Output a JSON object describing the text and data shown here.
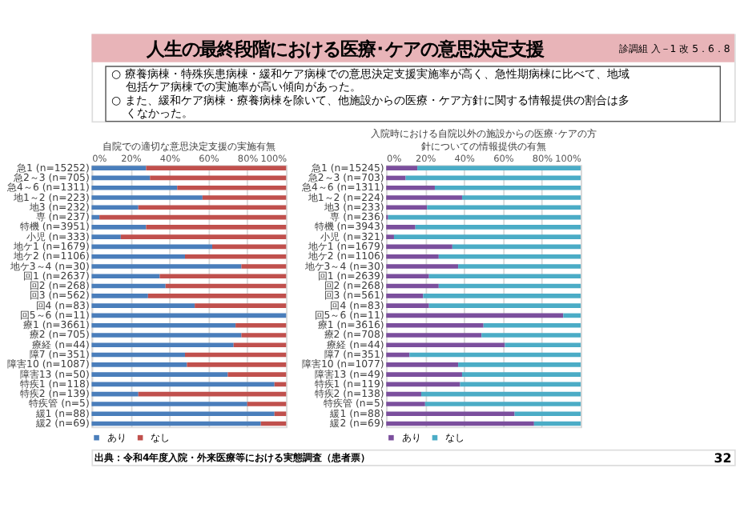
{
  "chart_data": [
    {
      "type": "other",
      "title": "人生の最終段階における医療･ケアの意思決定支援",
      "annotations": [
        "診調組 入－1 改 5．6．8",
        "○ 療養病棟・特殊疾患病棟・緩和ケア病棟での意思決定支援実施率が高く、急性期病棟に比べて、地域包括ケア病棟での実施率が高い傾向があった。",
        "○ また、緩和ケア病棟・療養病棟を除いて、他施設からの医療・ケア方針に関する情報提供の割合は多くなかった。",
        "出典：令和4年度入院・外来医療等における実態調査（患者票）",
        "32"
      ]
    },
    {
      "type": "bar",
      "orientation": "horizontal",
      "stacked": true,
      "title": "自院での適切な意思決定支援の実施有無",
      "categories": [
        "急1 (n=15252)",
        "急2～3 (n=705)",
        "急4～6 (n=1311)",
        "地1～2 (n=223)",
        "地3 (n=232)",
        "専 (n=237)",
        "特機 (n=3951)",
        "小児 (n=333)",
        "地ケ1 (n=1679)",
        "地ケ2 (n=1106)",
        "地ケ3～4 (n=30)",
        "回1 (n=2637)",
        "回2 (n=268)",
        "回3 (n=562)",
        "回4 (n=83)",
        "回5～6 (n=11)",
        "療1 (n=3661)",
        "療2 (n=705)",
        "療経 (n=44)",
        "障7 (n=351)",
        "障害10 (n=1087)",
        "障害13 (n=50)",
        "特疾1 (n=118)",
        "特疾2 (n=139)",
        "特疾管 (n=5)",
        "緩1 (n=88)",
        "緩2 (n=69)"
      ],
      "series": [
        {
          "name": "あり",
          "color": "#4a7ebb",
          "values": [
            28,
            30,
            44,
            57,
            24,
            4,
            28,
            15,
            62,
            48,
            77,
            35,
            38,
            29,
            53,
            100,
            74,
            77,
            73,
            48,
            49,
            70,
            94,
            24,
            80,
            94,
            87
          ]
        },
        {
          "name": "なし",
          "color": "#c0504d",
          "values": [
            72,
            70,
            56,
            43,
            76,
            96,
            72,
            85,
            38,
            52,
            23,
            65,
            62,
            71,
            47,
            0,
            26,
            23,
            27,
            52,
            51,
            30,
            6,
            76,
            20,
            6,
            13
          ]
        }
      ],
      "xlim": [
        0,
        100
      ],
      "xticks": [
        {
          "value": 0,
          "label": "0%"
        },
        {
          "value": 20,
          "label": "20%"
        },
        {
          "value": 40,
          "label": "40%"
        },
        {
          "value": 60,
          "label": "60%"
        },
        {
          "value": 80,
          "label": "80%"
        },
        {
          "value": 100,
          "label": "100%"
        }
      ],
      "grid": "x",
      "legend": "bottom"
    },
    {
      "type": "bar",
      "orientation": "horizontal",
      "stacked": true,
      "title": "入院時における自院以外の施設からの医療･ケアの方針についての情報提供の有無",
      "categories": [
        "急1 (n=15245)",
        "急2～3 (n=703)",
        "急4～6 (n=1311)",
        "地1～2 (n=224)",
        "地3 (n=233)",
        "専 (n=236)",
        "特機 (n=3943)",
        "小児 (n=321)",
        "地ケ1 (n=1679)",
        "地ケ2 (n=1106)",
        "地ケ3～4 (n=30)",
        "回1 (n=2639)",
        "回2 (n=268)",
        "回3 (n=561)",
        "回4 (n=83)",
        "回5～6 (n=11)",
        "療1 (n=3616)",
        "療2 (n=708)",
        "療経 (n=44)",
        "障7 (n=351)",
        "障害10 (n=1077)",
        "障害13 (n=49)",
        "特疾1 (n=119)",
        "特疾2 (n=138)",
        "特疾管 (n=5)",
        "緩1 (n=88)",
        "緩2 (n=69)"
      ],
      "series": [
        {
          "name": "あり",
          "color": "#7b4f9d",
          "values": [
            16,
            10,
            25,
            39,
            21,
            1,
            15,
            4,
            34,
            27,
            37,
            22,
            27,
            19,
            22,
            91,
            50,
            49,
            61,
            12,
            37,
            39,
            38,
            18,
            20,
            66,
            76
          ]
        },
        {
          "name": "なし",
          "color": "#4bacc6",
          "values": [
            84,
            90,
            75,
            61,
            79,
            99,
            85,
            96,
            66,
            73,
            63,
            78,
            73,
            81,
            78,
            9,
            50,
            51,
            39,
            88,
            63,
            61,
            62,
            82,
            80,
            34,
            24
          ]
        }
      ],
      "xlim": [
        0,
        100
      ],
      "xticks": [
        {
          "value": 0,
          "label": "0%"
        },
        {
          "value": 20,
          "label": "20%"
        },
        {
          "value": 40,
          "label": "40%"
        },
        {
          "value": 60,
          "label": "60%"
        },
        {
          "value": 80,
          "label": "80%"
        },
        {
          "value": 100,
          "label": "100%"
        }
      ],
      "grid": "x",
      "legend": "bottom"
    }
  ]
}
